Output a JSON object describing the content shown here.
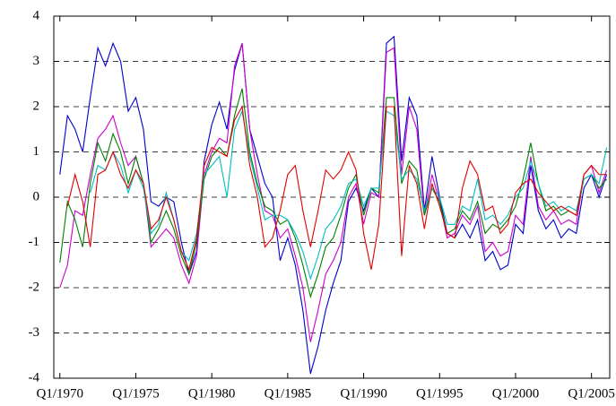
{
  "chart_data": {
    "type": "line",
    "x": [
      1970,
      1970.5,
      1971,
      1971.5,
      1972,
      1972.5,
      1973,
      1973.5,
      1974,
      1974.5,
      1975,
      1975.5,
      1976,
      1976.5,
      1977,
      1977.5,
      1978,
      1978.5,
      1979,
      1979.5,
      1980,
      1980.5,
      1981,
      1981.5,
      1982,
      1982.5,
      1983,
      1983.5,
      1984,
      1984.5,
      1985,
      1985.5,
      1986,
      1986.5,
      1987,
      1987.5,
      1988,
      1988.5,
      1989,
      1989.5,
      1990,
      1990.5,
      1991,
      1991.5,
      1992,
      1992.5,
      1993,
      1993.5,
      1994,
      1994.5,
      1995,
      1995.5,
      1996,
      1996.5,
      1997,
      1997.5,
      1998,
      1998.5,
      1999,
      1999.5,
      2000,
      2000.5,
      2001,
      2001.5,
      2002,
      2002.5,
      2003,
      2003.5,
      2004,
      2004.5,
      2005,
      2005.5,
      2006
    ],
    "series": [
      {
        "color": "#0000cc",
        "values": [
          0.5,
          1.8,
          1.5,
          1.0,
          2.2,
          3.3,
          2.9,
          3.4,
          3.0,
          1.9,
          2.2,
          1.5,
          -0.1,
          -0.2,
          0.0,
          -0.1,
          -1.0,
          -1.7,
          -1.2,
          0.8,
          1.6,
          2.1,
          1.5,
          2.8,
          3.4,
          1.5,
          0.9,
          0.3,
          0.0,
          -1.4,
          -0.9,
          -1.5,
          -2.5,
          -3.9,
          -3.3,
          -2.5,
          -1.9,
          -1.4,
          -0.1,
          0.2,
          -0.3,
          0.2,
          0.0,
          3.4,
          3.55,
          0.8,
          2.2,
          1.8,
          -0.3,
          0.9,
          0.0,
          -0.8,
          -0.9,
          -0.6,
          -0.9,
          -0.5,
          -1.4,
          -1.2,
          -1.6,
          -1.5,
          -0.6,
          -0.8,
          0.7,
          -0.3,
          -0.7,
          -0.5,
          -0.9,
          -0.7,
          -0.8,
          0.2,
          0.5,
          0.0,
          0.5
        ]
      },
      {
        "color": "#cc00cc",
        "values": [
          -2.0,
          -1.5,
          -0.3,
          -0.4,
          0.5,
          1.3,
          1.5,
          1.8,
          1.2,
          0.7,
          0.9,
          0.3,
          -1.1,
          -0.9,
          -0.7,
          -0.9,
          -1.5,
          -1.9,
          -1.3,
          0.5,
          1.0,
          1.3,
          1.2,
          2.9,
          3.4,
          1.5,
          0.5,
          -0.3,
          -0.4,
          -0.9,
          -0.7,
          -1.3,
          -2.0,
          -3.2,
          -2.5,
          -1.7,
          -1.4,
          -1.0,
          0.0,
          0.3,
          -0.6,
          0.1,
          0.0,
          3.2,
          3.3,
          0.5,
          2.0,
          1.5,
          -0.4,
          0.5,
          -0.1,
          -0.9,
          -0.8,
          -0.4,
          -0.6,
          -0.2,
          -1.2,
          -1.0,
          -1.3,
          -1.2,
          -0.4,
          -0.6,
          0.9,
          -0.2,
          -0.5,
          -0.3,
          -0.6,
          -0.5,
          -0.6,
          0.5,
          0.7,
          0.1,
          0.6
        ]
      },
      {
        "color": "#008000",
        "values": [
          -1.45,
          -0.1,
          -0.5,
          -1.1,
          0.3,
          1.2,
          0.8,
          1.4,
          1.0,
          0.3,
          0.9,
          0.3,
          -1.0,
          -0.7,
          -0.3,
          -0.7,
          -1.3,
          -1.7,
          -1.0,
          0.4,
          0.9,
          1.1,
          0.9,
          1.8,
          2.4,
          1.0,
          0.3,
          -0.2,
          -0.3,
          -0.6,
          -0.5,
          -0.9,
          -1.5,
          -2.2,
          -1.7,
          -1.1,
          -0.9,
          -0.4,
          0.2,
          0.5,
          -0.4,
          0.2,
          0.1,
          2.2,
          2.2,
          0.3,
          0.8,
          0.6,
          -0.4,
          0.2,
          -0.1,
          -0.8,
          -0.7,
          -0.3,
          -0.5,
          -0.1,
          -0.8,
          -0.6,
          -0.7,
          -0.5,
          -0.2,
          0.4,
          1.2,
          0.3,
          -0.3,
          -0.2,
          -0.4,
          -0.3,
          -0.4,
          0.4,
          0.5,
          0.2,
          0.4
        ]
      },
      {
        "color": "#00bfbf",
        "values": [
          null,
          null,
          null,
          null,
          0.1,
          0.7,
          0.6,
          1.0,
          0.7,
          0.1,
          0.6,
          0.2,
          -0.8,
          -0.6,
          0.1,
          -0.5,
          -1.2,
          -1.4,
          -0.8,
          0.5,
          0.7,
          0.9,
          0.0,
          1.5,
          1.9,
          0.9,
          0.2,
          -0.5,
          -0.4,
          -0.4,
          -0.5,
          -0.8,
          -1.2,
          -1.8,
          -1.3,
          -0.7,
          -0.5,
          -0.2,
          0.3,
          0.4,
          -0.2,
          0.2,
          0.2,
          1.9,
          1.8,
          0.4,
          0.6,
          0.4,
          -0.3,
          0.2,
          0.0,
          -0.6,
          -0.6,
          -0.2,
          -0.3,
          0.4,
          -0.5,
          -0.4,
          -0.6,
          -0.4,
          0.0,
          0.2,
          0.8,
          0.3,
          -0.2,
          -0.1,
          -0.3,
          -0.2,
          -0.3,
          0.4,
          0.5,
          0.3,
          1.1
        ]
      },
      {
        "color": "#e00000",
        "values": [
          null,
          -0.2,
          0.5,
          -0.1,
          -1.1,
          0.5,
          0.6,
          1.0,
          0.5,
          0.2,
          0.6,
          0.3,
          -0.7,
          -0.5,
          0.0,
          -0.5,
          -1.2,
          -1.6,
          -0.9,
          0.7,
          1.1,
          1.0,
          0.9,
          1.7,
          2.0,
          0.7,
          0.0,
          -1.1,
          -0.9,
          -0.3,
          0.5,
          0.7,
          -0.3,
          -1.1,
          -0.3,
          0.6,
          0.4,
          0.6,
          1.0,
          0.6,
          -0.8,
          -1.6,
          -0.6,
          2.0,
          2.0,
          -1.3,
          0.7,
          0.3,
          -0.7,
          0.3,
          -0.2,
          -0.8,
          -0.9,
          0.2,
          0.8,
          0.5,
          -0.3,
          -0.2,
          -0.8,
          -0.6,
          0.1,
          0.3,
          0.4,
          0.1,
          -0.1,
          -0.3,
          -0.2,
          -0.3,
          -0.4,
          0.5,
          0.7,
          0.5,
          0.5
        ]
      }
    ],
    "xlim": [
      1969.6,
      2006.2
    ],
    "xticks": [
      {
        "value": 1970,
        "label": "Q1/1970"
      },
      {
        "value": 1975,
        "label": "Q1/1975"
      },
      {
        "value": 1980,
        "label": "Q1/1980"
      },
      {
        "value": 1985,
        "label": "Q1/1985"
      },
      {
        "value": 1990,
        "label": "Q1/1990"
      },
      {
        "value": 1995,
        "label": "Q1/1995"
      },
      {
        "value": 2000,
        "label": "Q1/2000"
      },
      {
        "value": 2005,
        "label": "Q1/2005"
      }
    ],
    "ylim": [
      -4,
      4
    ],
    "yticks": [
      -4,
      -3,
      -2,
      -1,
      0,
      1,
      2,
      3,
      4
    ],
    "grid": true
  }
}
